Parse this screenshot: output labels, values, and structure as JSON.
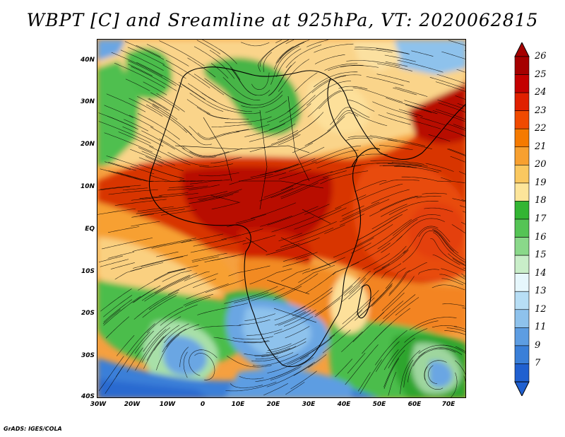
{
  "title": "WBPT [C] and Sreamline at 925hPa, VT: 2020062815",
  "footer": "GrADS: IGES/COLA",
  "axes": {
    "lat_labels": [
      "40N",
      "30N",
      "20N",
      "10N",
      "EQ",
      "10S",
      "20S",
      "30S",
      "40S"
    ],
    "lon_labels": [
      "30W",
      "20W",
      "10W",
      "0",
      "10E",
      "20E",
      "30E",
      "40E",
      "50E",
      "60E",
      "70E"
    ]
  },
  "colorbar": {
    "labels": [
      "26",
      "25",
      "24",
      "23",
      "22",
      "21",
      "20",
      "19",
      "18",
      "17",
      "16",
      "15",
      "14",
      "13",
      "12",
      "11",
      "9",
      "7"
    ],
    "colors": [
      "#a50000",
      "#c40000",
      "#e02000",
      "#f04a00",
      "#f57a00",
      "#f7a030",
      "#fac860",
      "#fde59a",
      "#33b533",
      "#55c455",
      "#8ad88a",
      "#c9eec9",
      "#e6f7fc",
      "#b7def5",
      "#8ec2ec",
      "#5d9de2",
      "#3a7fd8",
      "#2060d0"
    ]
  },
  "palette": {
    "hot": "#c81a00",
    "warm": "#f07a1e",
    "cool_green": "#4cbd4c",
    "cool_blue": "#5ea1e2"
  }
}
